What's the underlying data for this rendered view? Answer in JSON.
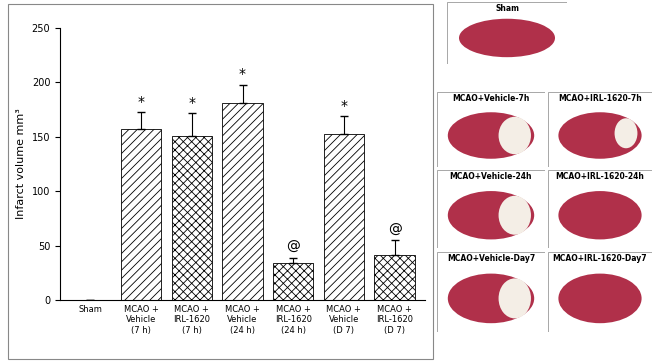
{
  "chart_data": {
    "type": "bar",
    "y_label": "Infarct volume mm³",
    "categories": [
      "Sham",
      "MCAO +\nVehicle\n(7 h)",
      "MCAO +\nIRL-1620\n(7 h)",
      "MCAO +\nVehicle\n(24 h)",
      "MCAO +\nIRL-1620\n(24 h)",
      "MCAO +\nVehicle\n(D 7)",
      "MCAO +\nIRL-1620\n(D 7)"
    ],
    "values": [
      0,
      157,
      151,
      181,
      34,
      153,
      41
    ],
    "errors": [
      0,
      16,
      21,
      17,
      5,
      16,
      14
    ],
    "annotations": [
      null,
      "*",
      "*",
      "*",
      "@",
      "*",
      "@"
    ],
    "color": "#ffffff",
    "ylim": [
      0,
      250
    ],
    "yticks": [
      0,
      50,
      100,
      150,
      200,
      250
    ],
    "panels": [
      "Sham",
      "MCAO+Vehicle-7h",
      "MCAO+IRL-1620-7h",
      "MCAO+Vehicle-24h",
      "MCAO+IRL-1620-24h",
      "MCAO+Vehicle-Day7",
      "MCAO+IRL-1620-Day7"
    ]
  }
}
